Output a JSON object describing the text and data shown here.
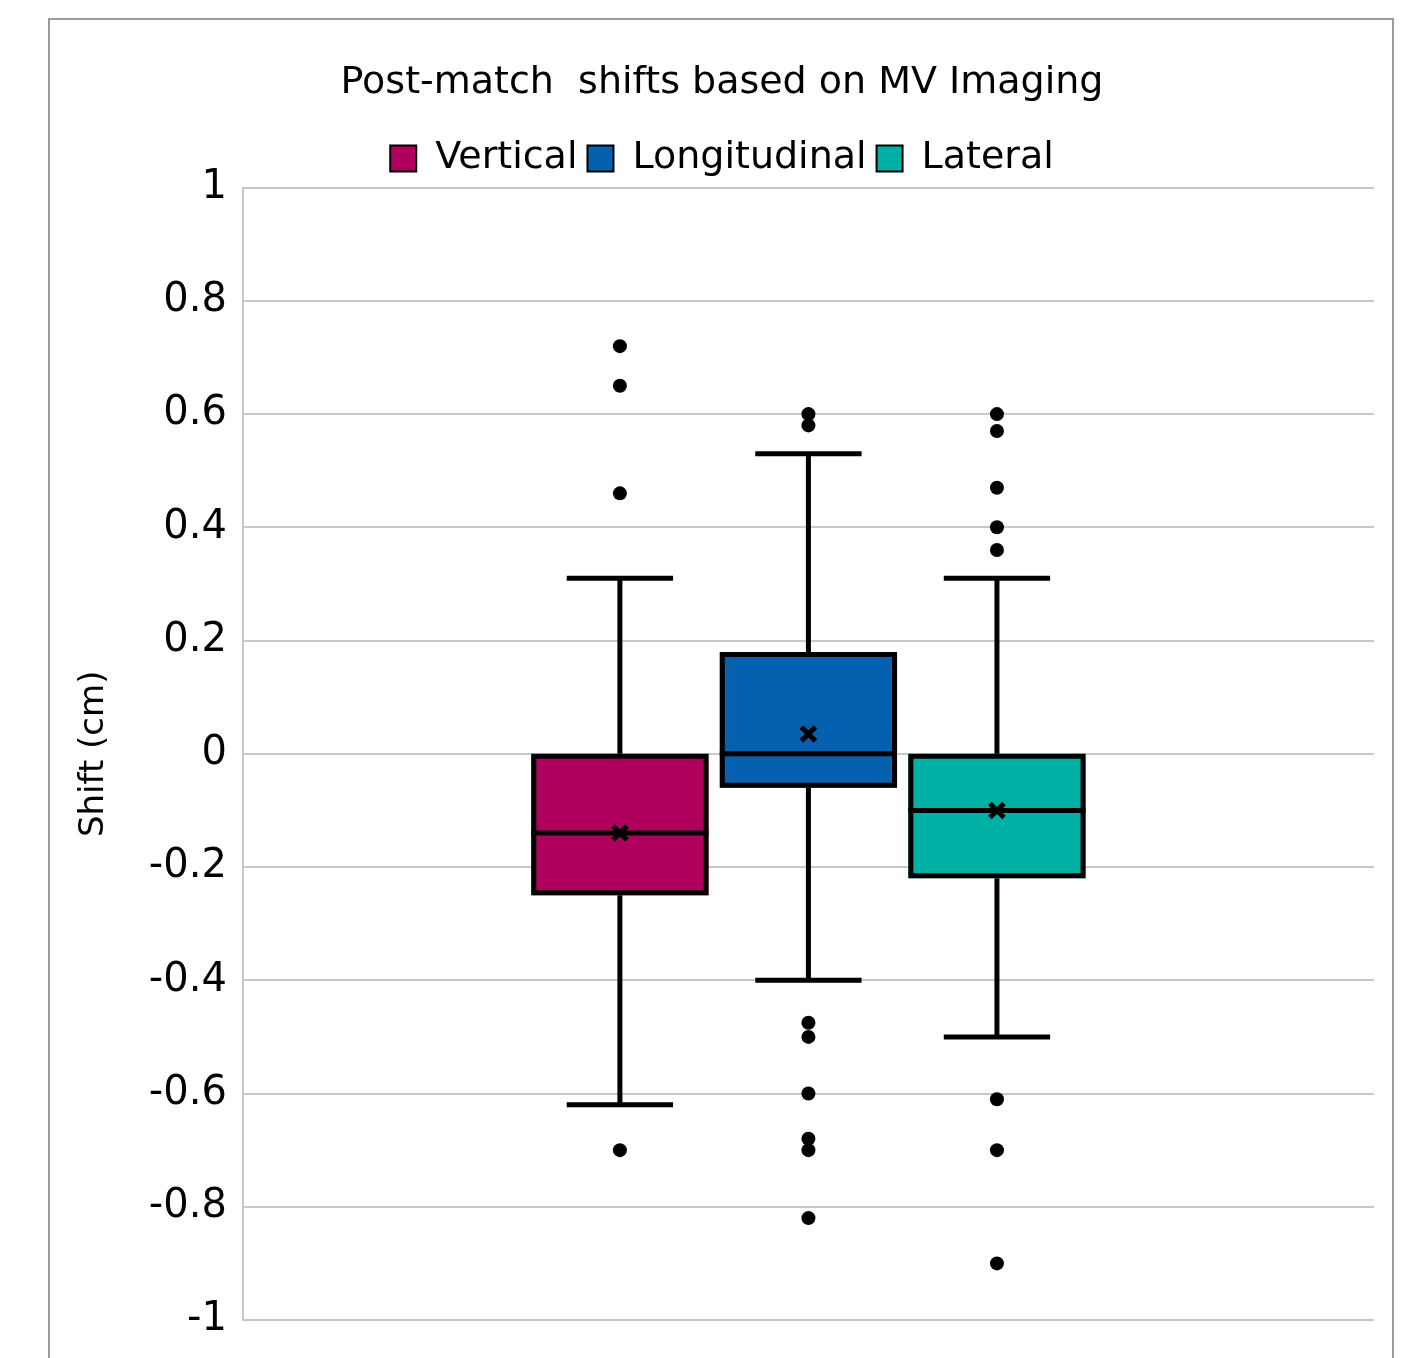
{
  "chart_data": {
    "type": "box",
    "title": "Post-match  shifts based on MV Imaging",
    "ylabel": "Shift (cm)",
    "categories": [
      null
    ],
    "series": [
      {
        "name": "Vertical",
        "color": "#b0005e",
        "boxes": [
          {
            "low": -0.62,
            "q1": -0.25,
            "median": -0.14,
            "q3": 0,
            "high": 0.31,
            "mean": -0.14,
            "outliers": [
              0.72,
              0.65,
              0.46,
              -0.7
            ]
          }
        ]
      },
      {
        "name": "Longitudinal",
        "color": "#0560b0",
        "boxes": [
          {
            "low": -0.4,
            "q1": -0.06,
            "median": 0,
            "q3": 0.18,
            "high": 0.53,
            "mean": 0.035,
            "outliers": [
              0.6,
              0.58,
              -0.475,
              -0.5,
              -0.6,
              -0.68,
              -0.7,
              -0.82
            ]
          }
        ]
      },
      {
        "name": "Lateral",
        "color": "#00b0a4",
        "boxes": [
          {
            "low": -0.5,
            "q1": -0.22,
            "median": -0.1,
            "q3": 0,
            "high": 0.31,
            "mean": -0.1,
            "outliers": [
              0.6,
              0.57,
              0.47,
              0.4,
              0.36,
              -0.61,
              -0.7,
              -0.9
            ]
          }
        ]
      }
    ],
    "ylim": [
      -1,
      1
    ],
    "yticks": [
      -1,
      -0.8,
      -0.6,
      -0.4,
      -0.2,
      0,
      0.2,
      0.4,
      0.6,
      0.8,
      1
    ],
    "grid": "y",
    "legend": "top",
    "tick_labels": "y"
  }
}
